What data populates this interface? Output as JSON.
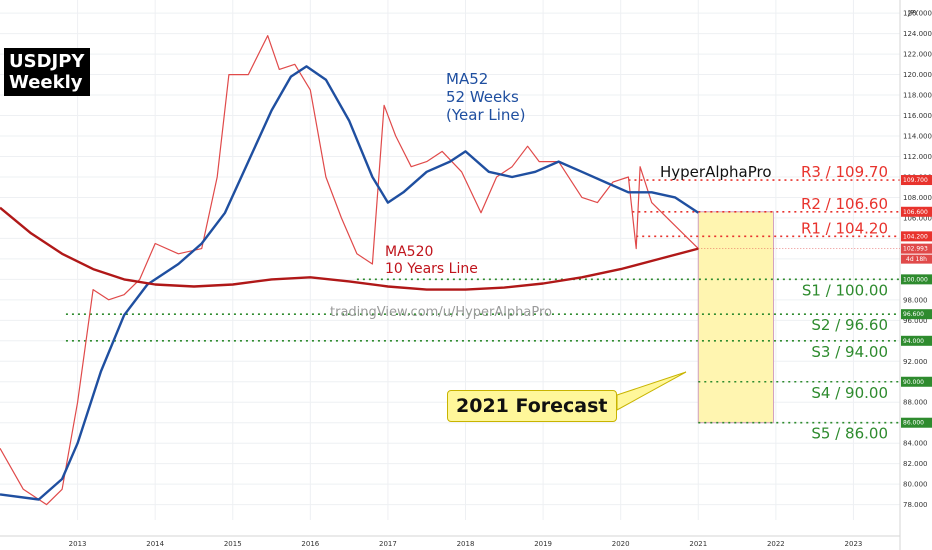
{
  "chart_data": {
    "type": "line",
    "symbol": "USDJPY",
    "timeframe": "Weekly",
    "currency_label": "JPY",
    "watermark": "tradingView.com/u/HyperAlphaPro",
    "author": "HyperAlphaPro",
    "forecast_label": "2021 Forecast",
    "xlim": [
      2012.0,
      2023.6
    ],
    "ylim": [
      76.5,
      126.5
    ],
    "x_ticks": [
      "2013",
      "2014",
      "2015",
      "2016",
      "2017",
      "2018",
      "2019",
      "2020",
      "2021",
      "2022",
      "2023"
    ],
    "y_ticks": [
      "78.000",
      "80.000",
      "82.000",
      "84.000",
      "86.000",
      "88.000",
      "90.000",
      "92.000",
      "94.000",
      "96.000",
      "98.000",
      "100.000",
      "102.000",
      "104.000",
      "106.000",
      "108.000",
      "110.000",
      "112.000",
      "114.000",
      "116.000",
      "118.000",
      "120.000",
      "122.000",
      "124.000",
      "126.000"
    ],
    "series": [
      {
        "name": "USDJPY",
        "color": "#e04a4a",
        "x": [
          2012.0,
          2012.3,
          2012.6,
          2012.8,
          2013.0,
          2013.2,
          2013.4,
          2013.6,
          2013.8,
          2014.0,
          2014.3,
          2014.6,
          2014.8,
          2014.95,
          2015.2,
          2015.45,
          2015.6,
          2015.8,
          2016.0,
          2016.2,
          2016.4,
          2016.6,
          2016.8,
          2016.95,
          2017.1,
          2017.3,
          2017.5,
          2017.7,
          2017.95,
          2018.2,
          2018.4,
          2018.6,
          2018.8,
          2018.95,
          2019.2,
          2019.5,
          2019.7,
          2019.9,
          2020.1,
          2020.2,
          2020.25,
          2020.4,
          2020.6,
          2020.8,
          2021.0
        ],
        "values": [
          83.5,
          79.5,
          78.0,
          79.5,
          88.0,
          99.0,
          98.0,
          98.5,
          100.0,
          103.5,
          102.5,
          103.0,
          110.0,
          120.0,
          120.0,
          123.8,
          120.5,
          121.0,
          118.5,
          110.0,
          106.0,
          102.5,
          101.5,
          117.0,
          114.0,
          111.0,
          111.5,
          112.5,
          110.5,
          106.5,
          110.0,
          111.0,
          113.0,
          111.5,
          111.5,
          108.0,
          107.5,
          109.5,
          110.0,
          103.0,
          111.0,
          107.5,
          106.0,
          104.5,
          103.0
        ]
      },
      {
        "name": "MA52",
        "color": "#1f4fa0",
        "x": [
          2012.0,
          2012.5,
          2012.8,
          2013.0,
          2013.3,
          2013.6,
          2013.9,
          2014.3,
          2014.6,
          2014.9,
          2015.2,
          2015.5,
          2015.75,
          2015.95,
          2016.2,
          2016.5,
          2016.8,
          2017.0,
          2017.2,
          2017.5,
          2017.8,
          2018.0,
          2018.3,
          2018.6,
          2018.9,
          2019.2,
          2019.5,
          2019.8,
          2020.1,
          2020.4,
          2020.7,
          2021.0
        ],
        "values": [
          79.0,
          78.5,
          80.5,
          84.0,
          91.0,
          96.5,
          99.5,
          101.5,
          103.5,
          106.5,
          111.5,
          116.5,
          119.8,
          120.8,
          119.5,
          115.5,
          110.0,
          107.5,
          108.5,
          110.5,
          111.5,
          112.5,
          110.5,
          110.0,
          110.5,
          111.5,
          110.5,
          109.5,
          108.5,
          108.5,
          108.0,
          106.5
        ]
      },
      {
        "name": "MA520",
        "color": "#b01818",
        "x": [
          2012.0,
          2012.4,
          2012.8,
          2013.2,
          2013.6,
          2014.0,
          2014.5,
          2015.0,
          2015.5,
          2016.0,
          2016.5,
          2017.0,
          2017.5,
          2018.0,
          2018.5,
          2019.0,
          2019.5,
          2020.0,
          2020.5,
          2021.0
        ],
        "values": [
          107.0,
          104.5,
          102.5,
          101.0,
          100.0,
          99.5,
          99.3,
          99.5,
          100.0,
          100.2,
          99.8,
          99.3,
          99.0,
          99.0,
          99.2,
          99.6,
          100.2,
          101.0,
          102.0,
          103.0
        ]
      }
    ],
    "price_tag": "102.993",
    "price_countdown": "4d 18h",
    "levels": [
      {
        "name": "R3",
        "value": 109.7,
        "label": "R3 / 109.70",
        "tag": "109.700",
        "kind": "resistance"
      },
      {
        "name": "R2",
        "value": 106.6,
        "label": "R2 / 106.60",
        "tag": "106.600",
        "kind": "resistance"
      },
      {
        "name": "R1",
        "value": 104.2,
        "label": "R1 / 104.20",
        "tag": "104.200",
        "kind": "resistance"
      },
      {
        "name": "S1",
        "value": 100.0,
        "label": "S1 / 100.00",
        "tag": "100.000",
        "kind": "support"
      },
      {
        "name": "S2",
        "value": 96.6,
        "label": "S2 / 96.60",
        "tag": "96.600",
        "kind": "support"
      },
      {
        "name": "S3",
        "value": 94.0,
        "label": "S3 / 94.00",
        "tag": "94.000",
        "kind": "support"
      },
      {
        "name": "S4",
        "value": 90.0,
        "label": "S4 / 90.00",
        "tag": "90.000",
        "kind": "support"
      },
      {
        "name": "S5",
        "value": 86.0,
        "label": "S5 / 86.00",
        "tag": "86.000",
        "kind": "support"
      }
    ],
    "forecast_range": {
      "x": [
        2021.0,
        2021.97
      ],
      "y": [
        86.0,
        106.6
      ]
    },
    "annotations": {
      "ma52": [
        "MA52",
        "52 Weeks",
        "(Year Line)"
      ],
      "ma520": [
        "MA520",
        "10 Years Line"
      ]
    },
    "colors": {
      "resistance": "#e8332d",
      "support": "#2e8b2e",
      "forecast_fill": "#fff5b0",
      "forecast_border": "#d0a0c0"
    }
  }
}
